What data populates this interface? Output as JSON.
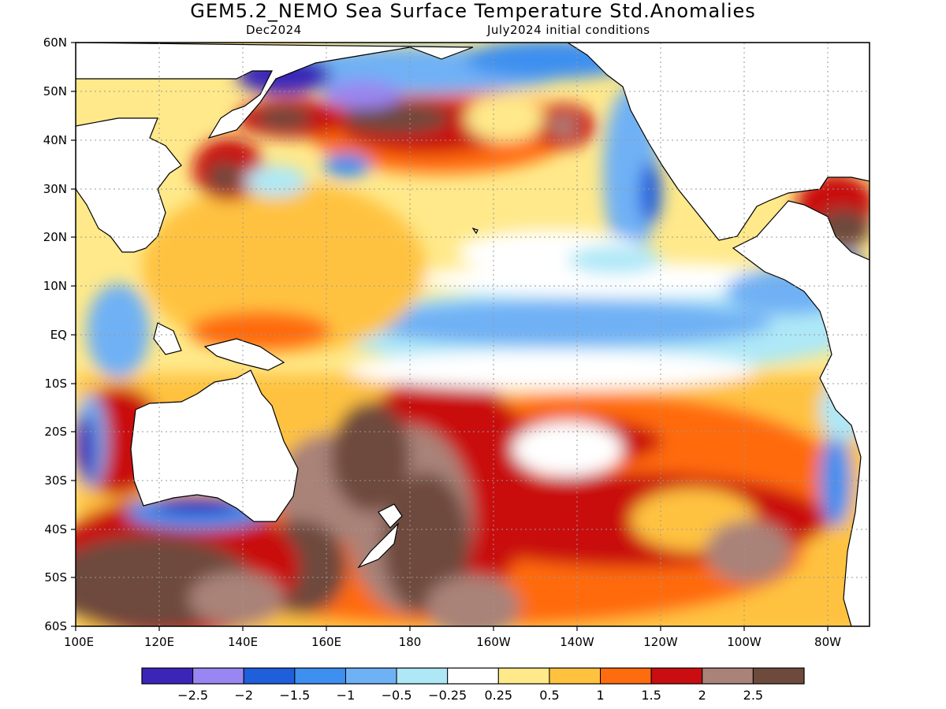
{
  "title": "GEM5.2_NEMO Sea Surface Temperature Std.Anomalies",
  "subtitle_left": "Dec2024",
  "subtitle_right": "July2024 initial conditions",
  "axes": {
    "lat_labels": [
      "60N",
      "50N",
      "40N",
      "30N",
      "20N",
      "10N",
      "EQ",
      "10S",
      "20S",
      "30S",
      "40S",
      "50S",
      "60S"
    ],
    "lon_labels": [
      "100E",
      "120E",
      "140E",
      "160E",
      "180",
      "160W",
      "140W",
      "120W",
      "100W",
      "80W"
    ]
  },
  "colorbar": {
    "colors": [
      "#3b25b8",
      "#9a86f2",
      "#1f5fdc",
      "#3d8ff0",
      "#6fb1f5",
      "#aee8f7",
      "#ffffff",
      "#ffe98a",
      "#ffc23f",
      "#ff6b0f",
      "#c90d10",
      "#a98278",
      "#6e4a3c"
    ],
    "tick_labels": [
      "-2.5",
      "-2",
      "-1.5",
      "-1",
      "-0.5",
      "-0.25",
      "0.25",
      "0.5",
      "1",
      "1.5",
      "2",
      "2.5"
    ]
  },
  "chart_data": {
    "type": "heatmap",
    "variable": "Sea Surface Temperature Std.Anomalies",
    "lon_range": [
      100,
      290
    ],
    "lat_range": [
      -60,
      60
    ],
    "levels": [
      -2.5,
      -2,
      -1.5,
      -1,
      -0.5,
      -0.25,
      0.25,
      0.5,
      1,
      1.5,
      2,
      2.5
    ]
  }
}
